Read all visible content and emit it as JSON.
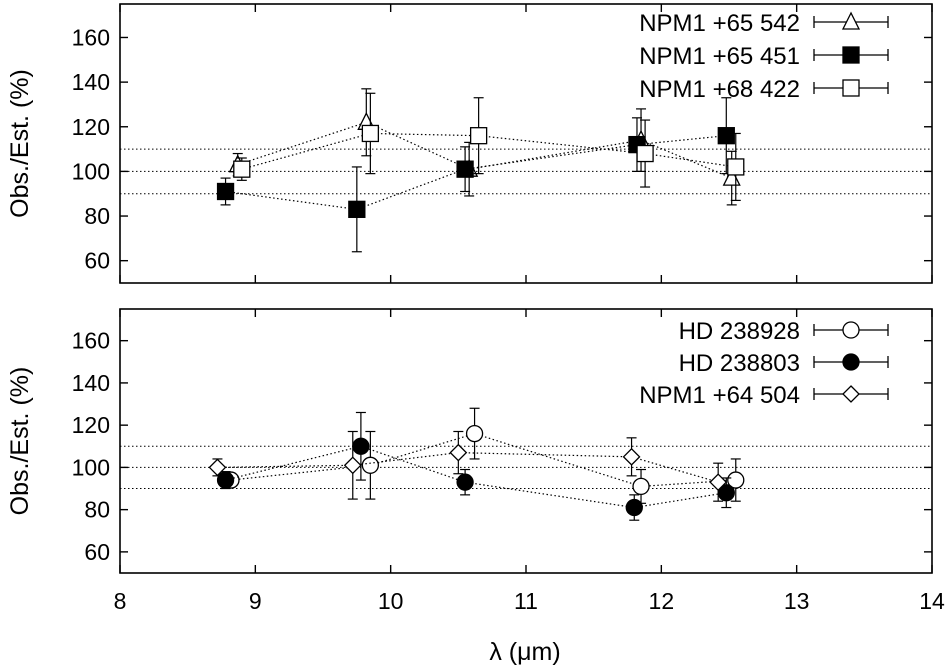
{
  "chart_data": [
    {
      "type": "scatter",
      "panel": "top",
      "ylabel": "Obs./Est. (%)",
      "xlabel": "",
      "xlim": [
        8,
        14
      ],
      "ylim": [
        50,
        175
      ],
      "yticks": [
        "60",
        "80",
        "100",
        "120",
        "140",
        "160"
      ],
      "reference_lines": [
        90,
        100,
        110
      ],
      "legend_position": "top-right",
      "series": [
        {
          "name": "NPM1 +65 542",
          "marker": "triangle-open",
          "x": [
            8.87,
            9.82,
            10.58,
            11.85,
            12.52
          ],
          "y": [
            103,
            122,
            101,
            114,
            97
          ],
          "err": [
            5,
            15,
            12,
            14,
            12
          ]
        },
        {
          "name": "NPM1 +65 451",
          "marker": "square-filled",
          "x": [
            8.78,
            9.75,
            10.55,
            11.82,
            12.48
          ],
          "y": [
            91,
            83,
            101,
            112,
            116
          ],
          "err": [
            6,
            19,
            10,
            12,
            17
          ]
        },
        {
          "name": "NPM1 +68 422",
          "marker": "square-open",
          "x": [
            8.9,
            9.85,
            10.65,
            11.88,
            12.55
          ],
          "y": [
            101,
            117,
            116,
            108,
            102
          ],
          "err": [
            5,
            18,
            17,
            15,
            15
          ]
        }
      ]
    },
    {
      "type": "scatter",
      "panel": "bottom",
      "ylabel": "Obs./Est. (%)",
      "xlabel": "λ (μm)",
      "xlim": [
        8,
        14
      ],
      "ylim": [
        50,
        175
      ],
      "yticks": [
        "60",
        "80",
        "100",
        "120",
        "140",
        "160"
      ],
      "xticks": [
        "8",
        "9",
        "10",
        "11",
        "12",
        "13",
        "14"
      ],
      "reference_lines": [
        90,
        100,
        110
      ],
      "legend_position": "top-right",
      "series": [
        {
          "name": "HD 238928",
          "marker": "circle-open",
          "x": [
            8.82,
            9.85,
            10.62,
            11.85,
            12.55
          ],
          "y": [
            94,
            101,
            116,
            91,
            94
          ],
          "err": [
            3,
            16,
            12,
            8,
            10
          ]
        },
        {
          "name": "HD 238803",
          "marker": "circle-filled",
          "x": [
            8.78,
            9.78,
            10.55,
            11.8,
            12.48
          ],
          "y": [
            94,
            110,
            93,
            81,
            88
          ],
          "err": [
            4,
            16,
            6,
            6,
            7
          ]
        },
        {
          "name": "NPM1 +64 504",
          "marker": "diamond-open",
          "x": [
            8.72,
            9.72,
            10.5,
            11.78,
            12.42
          ],
          "y": [
            100,
            101,
            107,
            105,
            93
          ],
          "err": [
            4,
            16,
            10,
            9,
            9
          ]
        }
      ]
    }
  ]
}
